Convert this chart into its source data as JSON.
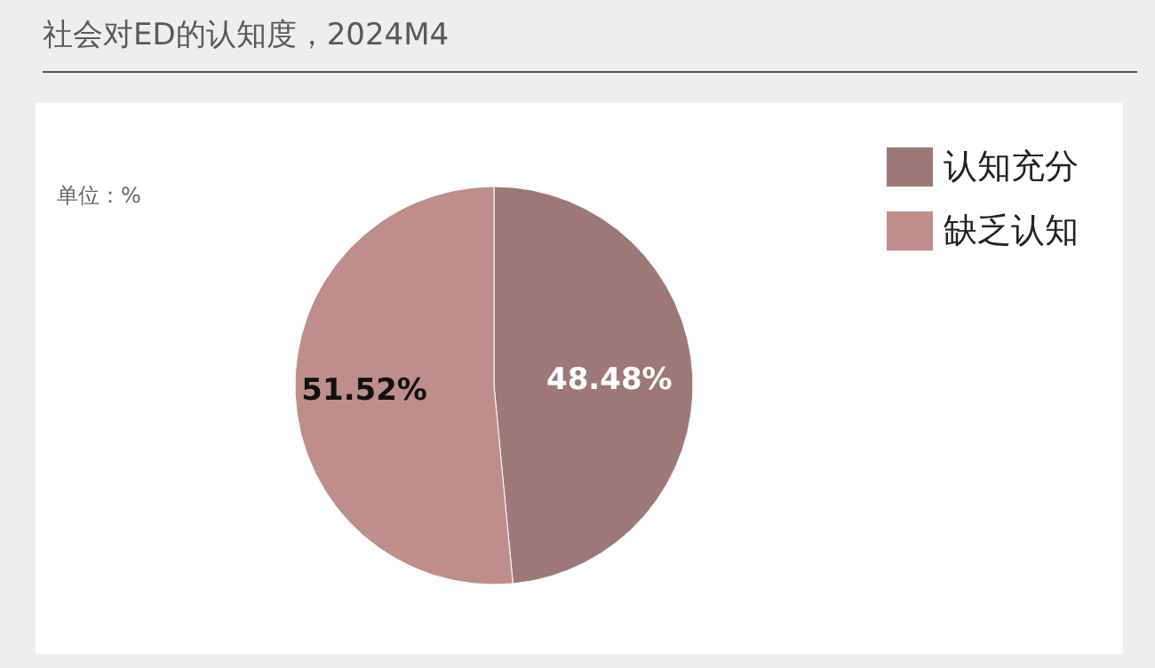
{
  "chart_data": {
    "type": "pie",
    "title": "社会对ED的认知度，2024M4",
    "subtitle": "单位：%",
    "categories": [
      "认知充分",
      "缺乏认知"
    ],
    "values": [
      48.48,
      51.52
    ],
    "colors": [
      "#9d7878",
      "#bf8d8b"
    ],
    "value_labels": [
      "48.48%",
      "51.52%"
    ],
    "legend": "top right"
  }
}
